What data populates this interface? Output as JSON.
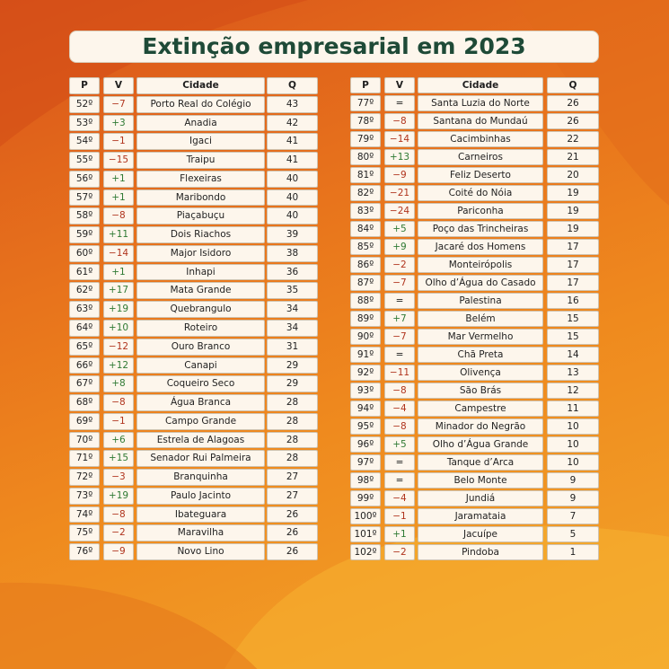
{
  "header": {
    "title": "Extinção empresarial em 2023"
  },
  "headers": [
    "P",
    "V",
    "Cidade",
    "Q"
  ],
  "tables": [
    {
      "rows": [
        [
          "52º",
          "−7",
          "Porto Real do Colégio",
          43
        ],
        [
          "53º",
          "+3",
          "Anadia",
          42
        ],
        [
          "54º",
          "−1",
          "Igaci",
          41
        ],
        [
          "55º",
          "−15",
          "Traipu",
          41
        ],
        [
          "56º",
          "+1",
          "Flexeiras",
          40
        ],
        [
          "57º",
          "+1",
          "Maribondo",
          40
        ],
        [
          "58º",
          "−8",
          "Piaçabuçu",
          40
        ],
        [
          "59º",
          "+11",
          "Dois Riachos",
          39
        ],
        [
          "60º",
          "−14",
          "Major Isidoro",
          38
        ],
        [
          "61º",
          "+1",
          "Inhapi",
          36
        ],
        [
          "62º",
          "+17",
          "Mata Grande",
          35
        ],
        [
          "63º",
          "+19",
          "Quebrangulo",
          34
        ],
        [
          "64º",
          "+10",
          "Roteiro",
          34
        ],
        [
          "65º",
          "−12",
          "Ouro Branco",
          31
        ],
        [
          "66º",
          "+12",
          "Canapi",
          29
        ],
        [
          "67º",
          "+8",
          "Coqueiro Seco",
          29
        ],
        [
          "68º",
          "−8",
          "Água Branca",
          28
        ],
        [
          "69º",
          "−1",
          "Campo Grande",
          28
        ],
        [
          "70º",
          "+6",
          "Estrela de Alagoas",
          28
        ],
        [
          "71º",
          "+15",
          "Senador Rui Palmeira",
          28
        ],
        [
          "72º",
          "−3",
          "Branquinha",
          27
        ],
        [
          "73º",
          "+19",
          "Paulo Jacinto",
          27
        ],
        [
          "74º",
          "−8",
          "Ibateguara",
          26
        ],
        [
          "75º",
          "−2",
          "Maravilha",
          26
        ],
        [
          "76º",
          "−9",
          "Novo Lino",
          26
        ]
      ]
    },
    {
      "rows": [
        [
          "77º",
          "=",
          "Santa Luzia do Norte",
          26
        ],
        [
          "78º",
          "−8",
          "Santana do Mundaú",
          26
        ],
        [
          "79º",
          "−14",
          "Cacimbinhas",
          22
        ],
        [
          "80º",
          "+13",
          "Carneiros",
          21
        ],
        [
          "81º",
          "−9",
          "Feliz Deserto",
          20
        ],
        [
          "82º",
          "−21",
          "Coité do Nóia",
          19
        ],
        [
          "83º",
          "−24",
          "Pariconha",
          19
        ],
        [
          "84º",
          "+5",
          "Poço das Trincheiras",
          19
        ],
        [
          "85º",
          "+9",
          "Jacaré dos Homens",
          17
        ],
        [
          "86º",
          "−2",
          "Monteirópolis",
          17
        ],
        [
          "87º",
          "−7",
          "Olho d’Água do Casado",
          17
        ],
        [
          "88º",
          "=",
          "Palestina",
          16
        ],
        [
          "89º",
          "+7",
          "Belém",
          15
        ],
        [
          "90º",
          "−7",
          "Mar Vermelho",
          15
        ],
        [
          "91º",
          "=",
          "Chã Preta",
          14
        ],
        [
          "92º",
          "−11",
          "Olivença",
          13
        ],
        [
          "93º",
          "−8",
          "São Brás",
          12
        ],
        [
          "94º",
          "−4",
          "Campestre",
          11
        ],
        [
          "95º",
          "−8",
          "Minador do Negrão",
          10
        ],
        [
          "96º",
          "+5",
          "Olho d’Água Grande",
          10
        ],
        [
          "97º",
          "=",
          "Tanque d’Arca",
          10
        ],
        [
          "98º",
          "=",
          "Belo Monte",
          9
        ],
        [
          "99º",
          "−4",
          "Jundiá",
          9
        ],
        [
          "100º",
          "−1",
          "Jaramataia",
          7
        ],
        [
          "101º",
          "+1",
          "Jacuípe",
          5
        ],
        [
          "102º",
          "−2",
          "Pindoba",
          1
        ]
      ]
    }
  ]
}
